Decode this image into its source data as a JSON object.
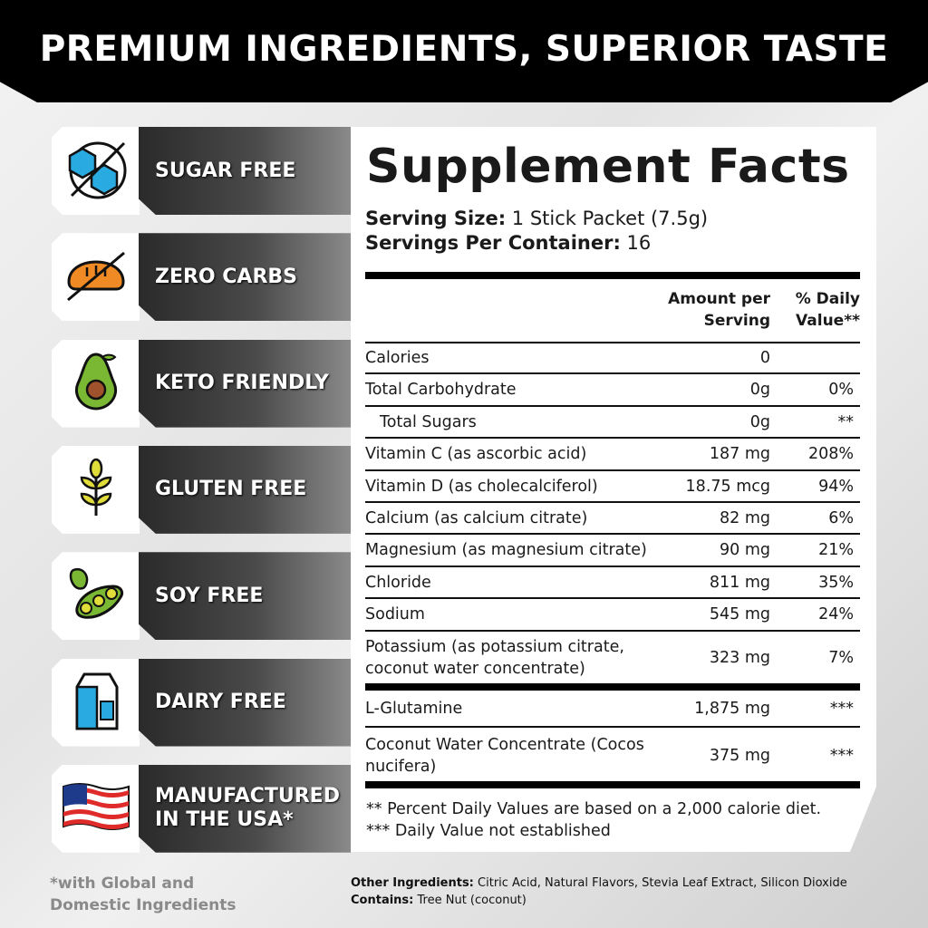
{
  "header": {
    "title": "PREMIUM INGREDIENTS, SUPERIOR TASTE"
  },
  "badges": [
    {
      "label": "SUGAR FREE",
      "icon": "sugar-cube-crossed-icon"
    },
    {
      "label": "ZERO CARBS",
      "icon": "bread-crossed-icon"
    },
    {
      "label": "KETO FRIENDLY",
      "icon": "avocado-icon"
    },
    {
      "label": "GLUTEN FREE",
      "icon": "wheat-icon"
    },
    {
      "label": "SOY FREE",
      "icon": "soybean-icon"
    },
    {
      "label": "DAIRY FREE",
      "icon": "milk-carton-icon"
    },
    {
      "label": "MANUFACTURED IN THE USA*",
      "icon": "us-flag-icon"
    }
  ],
  "facts": {
    "title": "Supplement Facts",
    "serving_size_label": "Serving Size:",
    "serving_size": "1 Stick Packet (7.5g)",
    "servings_label": "Servings Per Container:",
    "servings": "16",
    "col_amount": "Amount per Serving",
    "col_dv": "% Daily Value**",
    "rows": [
      {
        "name": "Calories",
        "amount": "0",
        "dv": ""
      },
      {
        "name": "Total Carbohydrate",
        "amount": "0g",
        "dv": "0%"
      },
      {
        "name": "Total Sugars",
        "amount": "0g",
        "dv": "**",
        "indent": true
      },
      {
        "name": "Vitamin C (as ascorbic acid)",
        "amount": "187 mg",
        "dv": "208%"
      },
      {
        "name": "Vitamin D (as cholecalciferol)",
        "amount": "18.75 mcg",
        "dv": "94%"
      },
      {
        "name": "Calcium (as calcium citrate)",
        "amount": "82 mg",
        "dv": "6%"
      },
      {
        "name": "Magnesium (as magnesium citrate)",
        "amount": "90 mg",
        "dv": "21%"
      },
      {
        "name": "Chloride",
        "amount": "811 mg",
        "dv": "35%"
      },
      {
        "name": "Sodium",
        "amount": "545 mg",
        "dv": "24%"
      },
      {
        "name": "Potassium (as potassium citrate, coconut water concentrate)",
        "amount": "323 mg",
        "dv": "7%"
      }
    ],
    "rows2": [
      {
        "name": "L-Glutamine",
        "amount": "1,875 mg",
        "dv": "***"
      },
      {
        "name": "Coconut Water Concentrate (Cocos nucifera)",
        "amount": "375 mg",
        "dv": "***"
      }
    ],
    "footnote1": "** Percent Daily Values are based on a 2,000 calorie diet.",
    "footnote2": "*** Daily Value not established"
  },
  "note": "*with Global and Domestic Ingredients",
  "ingredients": {
    "other_label": "Other Ingredients:",
    "other": "Citric Acid, Natural Flavors, Stevia Leaf Extract, Silicon Dioxide",
    "contains_label": "Contains:",
    "contains": "Tree Nut (coconut)"
  }
}
